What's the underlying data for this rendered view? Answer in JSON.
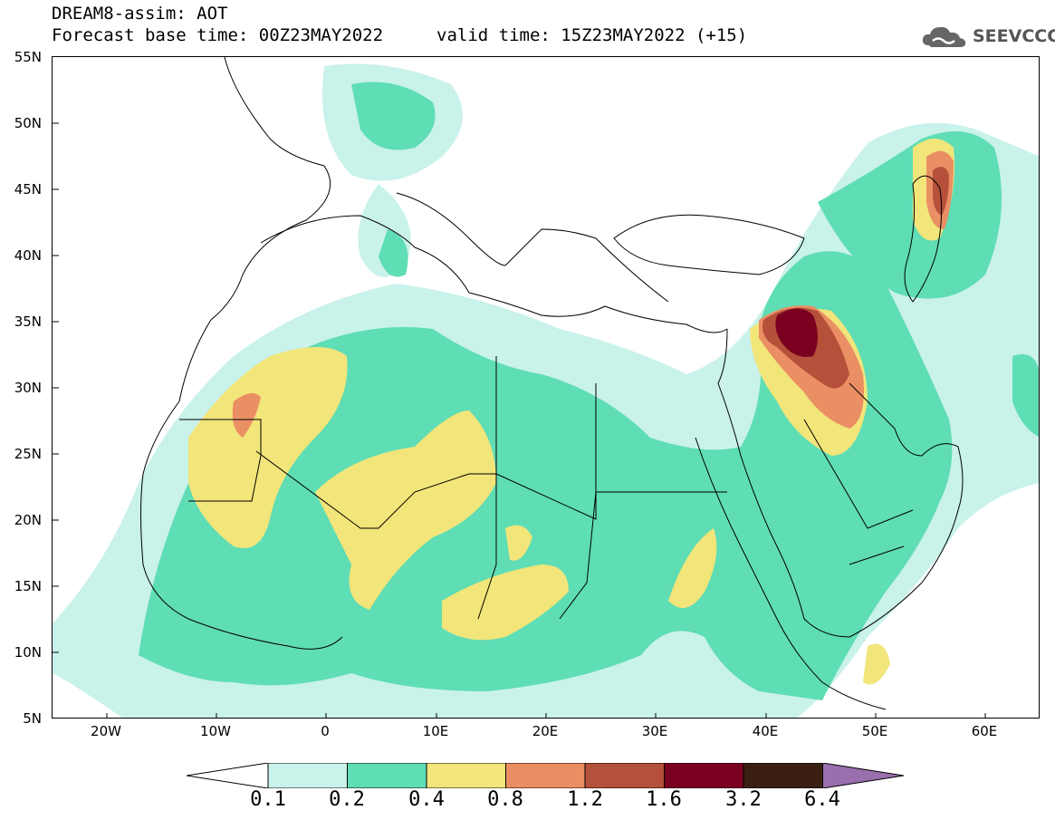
{
  "header": {
    "title": "DREAM8-assim: AOT",
    "base_time": "Forecast base time: 00Z23MAY2022",
    "valid_time": "valid time: 15Z23MAY2022 (+15)",
    "logo_text": "SEEVCCC"
  },
  "map": {
    "lat_labels": [
      "55N",
      "50N",
      "45N",
      "40N",
      "35N",
      "30N",
      "25N",
      "20N",
      "15N",
      "10N",
      "5N"
    ],
    "lon_labels": [
      "20W",
      "10W",
      "0",
      "10E",
      "20E",
      "30E",
      "40E",
      "50E",
      "60E"
    ],
    "lon_range": [
      -25,
      65
    ],
    "lat_range": [
      5,
      55
    ]
  },
  "colorbar": {
    "levels": [
      "0.1",
      "0.2",
      "0.4",
      "0.8",
      "1.2",
      "1.6",
      "3.2",
      "6.4"
    ],
    "colors": [
      "#c9f2ea",
      "#5fddb4",
      "#f2e57a",
      "#ea8f64",
      "#b5503a",
      "#7a0020",
      "#3a1f10",
      "#9a6fae"
    ]
  },
  "palette": {
    "c01": "#c9f2ea",
    "c02": "#5fddb4",
    "c04": "#f2e57a",
    "c08": "#ea8f64",
    "c12": "#b5503a",
    "c16": "#7a0020"
  }
}
